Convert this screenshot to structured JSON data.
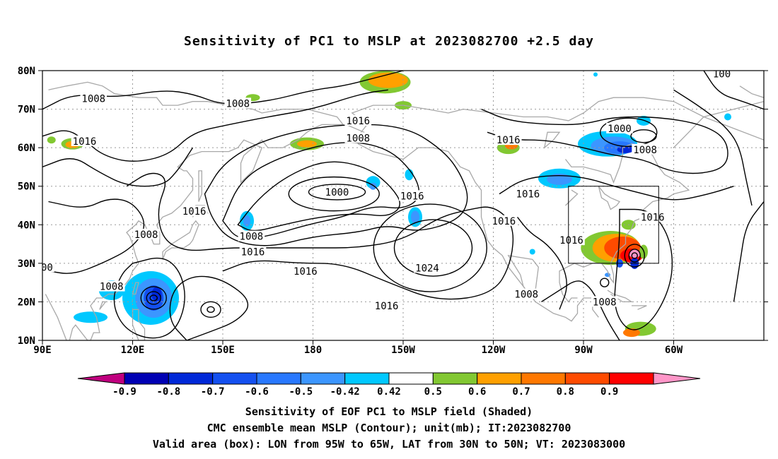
{
  "title": "Sensitivity of PC1 to MSLP at 2023082700 +2.5 day",
  "map": {
    "lat_labels": [
      "80N",
      "70N",
      "60N",
      "50N",
      "40N",
      "30N",
      "20N",
      "10N"
    ],
    "lon_labels": [
      "90E",
      "120E",
      "150E",
      "180",
      "150W",
      "120W",
      "90W",
      "60W"
    ],
    "contour_labels": [
      {
        "text": "1008",
        "lon": 107.0,
        "lat": 72.8
      },
      {
        "text": "1008",
        "lon": 155.0,
        "lat": 71.5
      },
      {
        "text": "1016",
        "lon": 104.0,
        "lat": 61.7
      },
      {
        "text": "1016",
        "lon": 195.0,
        "lat": 67.0
      },
      {
        "text": "1008",
        "lon": 195.0,
        "lat": 62.5
      },
      {
        "text": "1016",
        "lon": 245.0,
        "lat": 62.0
      },
      {
        "text": "1000",
        "lon": 282.0,
        "lat": 65.0
      },
      {
        "text": "1008",
        "lon": 290.5,
        "lat": 59.5
      },
      {
        "text": "1000",
        "lon": 188.0,
        "lat": 48.5
      },
      {
        "text": "1016",
        "lon": 213.0,
        "lat": 47.5
      },
      {
        "text": "1016",
        "lon": 251.5,
        "lat": 48.0
      },
      {
        "text": "1016",
        "lon": 140.5,
        "lat": 43.5
      },
      {
        "text": "1008",
        "lon": 124.5,
        "lat": 37.5
      },
      {
        "text": "1008",
        "lon": 159.5,
        "lat": 37.0
      },
      {
        "text": "1016",
        "lon": 160.0,
        "lat": 33.0
      },
      {
        "text": "1016",
        "lon": 177.5,
        "lat": 28.0
      },
      {
        "text": "1024",
        "lon": 218.0,
        "lat": 28.8
      },
      {
        "text": "1016",
        "lon": 243.5,
        "lat": 41.0
      },
      {
        "text": "1016",
        "lon": 266.0,
        "lat": 36.0
      },
      {
        "text": "1016",
        "lon": 293.0,
        "lat": 42.0
      },
      {
        "text": "1008",
        "lon": 113.0,
        "lat": 24.0
      },
      {
        "text": "1008",
        "lon": 251.0,
        "lat": 22.0
      },
      {
        "text": "1008",
        "lon": 277.0,
        "lat": 20.0
      },
      {
        "text": "1016",
        "lon": 204.5,
        "lat": 19.0
      },
      {
        "text": "00",
        "lon": 91.5,
        "lat": 29.0
      },
      {
        "text": "100",
        "lon": 316.0,
        "lat": 79.2
      }
    ],
    "valid_box": {
      "lon_west": 265,
      "lon_east": 295,
      "lat_south": 30,
      "lat_north": 50
    }
  },
  "colorbar": {
    "tick_labels": [
      "-0.9",
      "-0.8",
      "-0.7",
      "-0.6",
      "-0.5",
      "-0.42",
      "0.42",
      "0.5",
      "0.6",
      "0.7",
      "0.8",
      "0.9"
    ],
    "colors": [
      "#c0007f",
      "#0000b4",
      "#0028d8",
      "#1450f0",
      "#2878ff",
      "#3c96ff",
      "#00c8ff",
      "#ffffff",
      "#82c832",
      "#ffa000",
      "#ff7800",
      "#ff4b00",
      "#ff0000",
      "#ff96c8"
    ]
  },
  "caption": {
    "line1": "Sensitivity of EOF PC1 to MSLP field (Shaded)",
    "line2": "CMC ensemble mean MSLP (Contour); unit(mb); IT:2023082700",
    "line3": "Valid area (box): LON from 95W to 65W, LAT from 30N to 50N; VT: 2023083000"
  }
}
